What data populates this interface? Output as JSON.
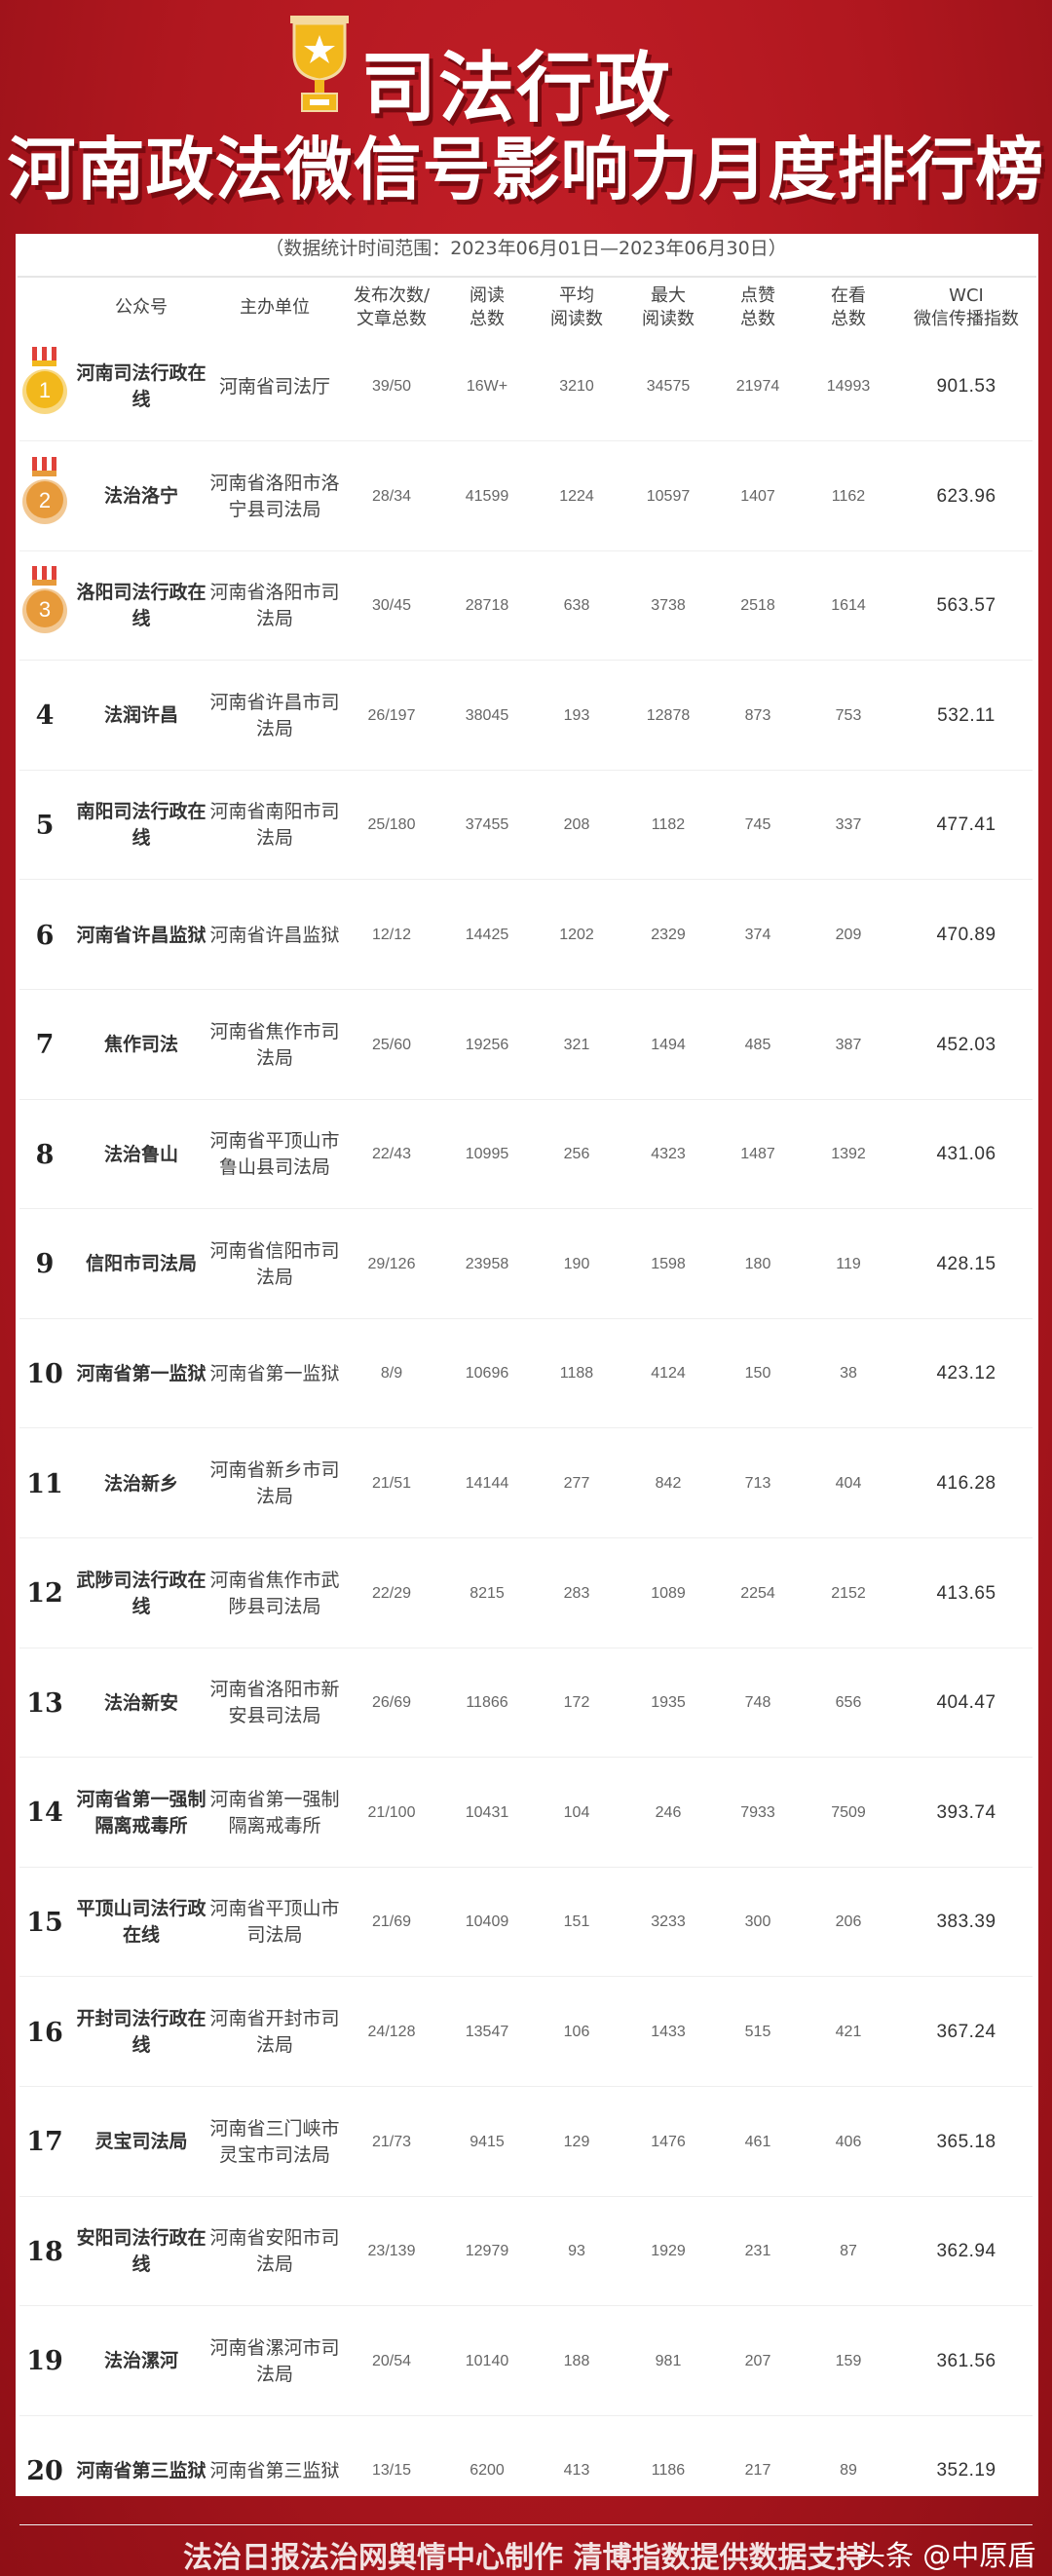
{
  "header": {
    "title_line1": "司法行政",
    "title_line2": "河南政法微信号影响力月度排行榜",
    "trophy_icon": "trophy-star-icon",
    "subtitle": "（数据统计时间范围：2023年06月01日—2023年06月30日）"
  },
  "colors": {
    "background": "#b0171f",
    "gold": "#f2b81c",
    "silver_bronze": "#e79a3a",
    "ribbon": "#e0413a"
  },
  "table": {
    "columns": [
      {
        "key": "name",
        "label": "公众号"
      },
      {
        "key": "unit",
        "label": "主办单位"
      },
      {
        "key": "posts",
        "label": "发布次数/\n文章总数"
      },
      {
        "key": "reads",
        "label": "阅读\n总数"
      },
      {
        "key": "avg",
        "label": "平均\n阅读数"
      },
      {
        "key": "max",
        "label": "最大\n阅读数"
      },
      {
        "key": "likes",
        "label": "点赞\n总数"
      },
      {
        "key": "watching",
        "label": "在看\n总数"
      },
      {
        "key": "wci",
        "label": "WCI\n微信传播指数"
      }
    ],
    "rows": [
      {
        "rank": "1",
        "name": "河南司法行政在线",
        "unit": "河南省司法厅",
        "posts": "39/50",
        "reads": "16W+",
        "avg": "3210",
        "max": "34575",
        "likes": "21974",
        "watching": "14993",
        "wci": "901.53"
      },
      {
        "rank": "2",
        "name": "法治洛宁",
        "unit": "河南省洛阳市洛宁县司法局",
        "posts": "28/34",
        "reads": "41599",
        "avg": "1224",
        "max": "10597",
        "likes": "1407",
        "watching": "1162",
        "wci": "623.96"
      },
      {
        "rank": "3",
        "name": "洛阳司法行政在线",
        "unit": "河南省洛阳市司法局",
        "posts": "30/45",
        "reads": "28718",
        "avg": "638",
        "max": "3738",
        "likes": "2518",
        "watching": "1614",
        "wci": "563.57"
      },
      {
        "rank": "4",
        "name": "法润许昌",
        "unit": "河南省许昌市司法局",
        "posts": "26/197",
        "reads": "38045",
        "avg": "193",
        "max": "12878",
        "likes": "873",
        "watching": "753",
        "wci": "532.11"
      },
      {
        "rank": "5",
        "name": "南阳司法行政在线",
        "unit": "河南省南阳市司法局",
        "posts": "25/180",
        "reads": "37455",
        "avg": "208",
        "max": "1182",
        "likes": "745",
        "watching": "337",
        "wci": "477.41"
      },
      {
        "rank": "6",
        "name": "河南省许昌监狱",
        "unit": "河南省许昌监狱",
        "posts": "12/12",
        "reads": "14425",
        "avg": "1202",
        "max": "2329",
        "likes": "374",
        "watching": "209",
        "wci": "470.89"
      },
      {
        "rank": "7",
        "name": "焦作司法",
        "unit": "河南省焦作市司法局",
        "posts": "25/60",
        "reads": "19256",
        "avg": "321",
        "max": "1494",
        "likes": "485",
        "watching": "387",
        "wci": "452.03"
      },
      {
        "rank": "8",
        "name": "法治鲁山",
        "unit": "河南省平顶山市鲁山县司法局",
        "posts": "22/43",
        "reads": "10995",
        "avg": "256",
        "max": "4323",
        "likes": "1487",
        "watching": "1392",
        "wci": "431.06"
      },
      {
        "rank": "9",
        "name": "信阳市司法局",
        "unit": "河南省信阳市司法局",
        "posts": "29/126",
        "reads": "23958",
        "avg": "190",
        "max": "1598",
        "likes": "180",
        "watching": "119",
        "wci": "428.15"
      },
      {
        "rank": "10",
        "name": "河南省第一监狱",
        "unit": "河南省第一监狱",
        "posts": "8/9",
        "reads": "10696",
        "avg": "1188",
        "max": "4124",
        "likes": "150",
        "watching": "38",
        "wci": "423.12"
      },
      {
        "rank": "11",
        "name": "法治新乡",
        "unit": "河南省新乡市司法局",
        "posts": "21/51",
        "reads": "14144",
        "avg": "277",
        "max": "842",
        "likes": "713",
        "watching": "404",
        "wci": "416.28"
      },
      {
        "rank": "12",
        "name": "武陟司法行政在线",
        "unit": "河南省焦作市武陟县司法局",
        "posts": "22/29",
        "reads": "8215",
        "avg": "283",
        "max": "1089",
        "likes": "2254",
        "watching": "2152",
        "wci": "413.65"
      },
      {
        "rank": "13",
        "name": "法治新安",
        "unit": "河南省洛阳市新安县司法局",
        "posts": "26/69",
        "reads": "11866",
        "avg": "172",
        "max": "1935",
        "likes": "748",
        "watching": "656",
        "wci": "404.47"
      },
      {
        "rank": "14",
        "name": "河南省第一强制隔离戒毒所",
        "unit": "河南省第一强制隔离戒毒所",
        "posts": "21/100",
        "reads": "10431",
        "avg": "104",
        "max": "246",
        "likes": "7933",
        "watching": "7509",
        "wci": "393.74"
      },
      {
        "rank": "15",
        "name": "平顶山司法行政在线",
        "unit": "河南省平顶山市司法局",
        "posts": "21/69",
        "reads": "10409",
        "avg": "151",
        "max": "3233",
        "likes": "300",
        "watching": "206",
        "wci": "383.39"
      },
      {
        "rank": "16",
        "name": "开封司法行政在线",
        "unit": "河南省开封市司法局",
        "posts": "24/128",
        "reads": "13547",
        "avg": "106",
        "max": "1433",
        "likes": "515",
        "watching": "421",
        "wci": "367.24"
      },
      {
        "rank": "17",
        "name": "灵宝司法局",
        "unit": "河南省三门峡市灵宝市司法局",
        "posts": "21/73",
        "reads": "9415",
        "avg": "129",
        "max": "1476",
        "likes": "461",
        "watching": "406",
        "wci": "365.18"
      },
      {
        "rank": "18",
        "name": "安阳司法行政在线",
        "unit": "河南省安阳市司法局",
        "posts": "23/139",
        "reads": "12979",
        "avg": "93",
        "max": "1929",
        "likes": "231",
        "watching": "87",
        "wci": "362.94"
      },
      {
        "rank": "19",
        "name": "法治漯河",
        "unit": "河南省漯河市司法局",
        "posts": "20/54",
        "reads": "10140",
        "avg": "188",
        "max": "981",
        "likes": "207",
        "watching": "159",
        "wci": "361.56"
      },
      {
        "rank": "20",
        "name": "河南省第三监狱",
        "unit": "河南省第三监狱",
        "posts": "13/15",
        "reads": "6200",
        "avg": "413",
        "max": "1186",
        "likes": "217",
        "watching": "89",
        "wci": "352.19"
      }
    ]
  },
  "footer": {
    "credit": "法治日报法治网舆情中心制作  清博指数提供数据支持",
    "watermark": "头条 @中原盾"
  }
}
